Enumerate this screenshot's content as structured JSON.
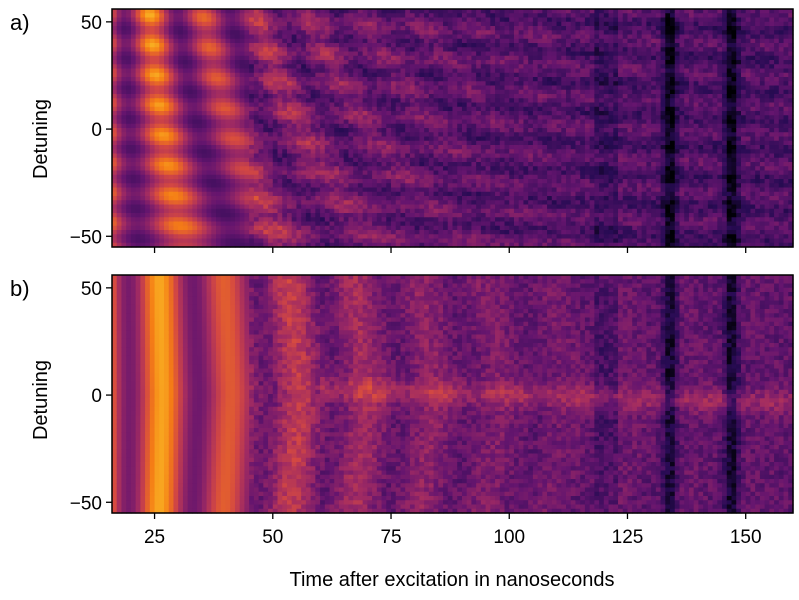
{
  "chart_data": [
    {
      "panel_label": "a)",
      "type": "heatmap",
      "colormap": "inferno",
      "xlabel": "",
      "ylabel": "Detuning",
      "xlim": [
        16,
        160
      ],
      "ylim": [
        -55,
        56
      ],
      "x_ticks": [
        25,
        50,
        75,
        100,
        125,
        150
      ],
      "x_tick_labels": [
        "",
        "",
        "",
        "",
        "",
        ""
      ],
      "y_ticks": [
        50,
        0,
        -50
      ],
      "y_tick_labels": [
        "50",
        "0",
        "−50"
      ],
      "pattern": {
        "oscillation_period_ns": 14.5,
        "first_peak_ns": 27,
        "decay_time_ns": 35,
        "detuning_dependent_phase": true,
        "dark_vertical_bands_ns": [
          134,
          147
        ]
      }
    },
    {
      "panel_label": "b)",
      "type": "heatmap",
      "colormap": "inferno",
      "xlabel": "Time after excitation in nanoseconds",
      "ylabel": "Detuning",
      "xlim": [
        16,
        160
      ],
      "ylim": [
        -55,
        56
      ],
      "x_ticks": [
        25,
        50,
        75,
        100,
        125,
        150
      ],
      "x_tick_labels": [
        "25",
        "50",
        "75",
        "100",
        "125",
        "150"
      ],
      "y_ticks": [
        50,
        0,
        -50
      ],
      "y_tick_labels": [
        "50",
        "0",
        "−50"
      ],
      "pattern": {
        "oscillation_period_ns": 14.5,
        "first_peak_ns": 27,
        "decay_time_ns": 38,
        "detuning_dependent_phase": false,
        "resonance_line_detuning": 0,
        "dark_vertical_bands_ns": [
          134,
          147
        ]
      }
    }
  ]
}
